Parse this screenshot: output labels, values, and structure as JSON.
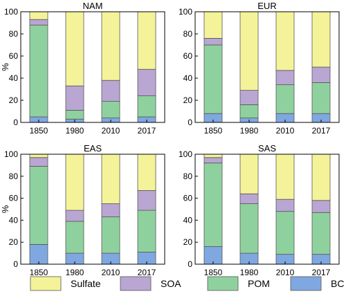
{
  "chart_data": [
    {
      "type": "bar",
      "stacked": true,
      "title": "NAM",
      "ylabel": "%",
      "ylim": [
        0,
        100
      ],
      "yticks": [
        0,
        20,
        40,
        60,
        80,
        100
      ],
      "categories": [
        "1850",
        "1980",
        "2010",
        "2017"
      ],
      "series": [
        {
          "name": "BC",
          "values": [
            5,
            3,
            4,
            5
          ]
        },
        {
          "name": "POM",
          "values": [
            83,
            8,
            15,
            19
          ]
        },
        {
          "name": "SOA",
          "values": [
            5,
            22,
            19,
            24
          ]
        },
        {
          "name": "Sulfate",
          "values": [
            7,
            67,
            62,
            52
          ]
        }
      ]
    },
    {
      "type": "bar",
      "stacked": true,
      "title": "EUR",
      "ylabel": "",
      "ylim": [
        0,
        100
      ],
      "yticks": [
        0,
        20,
        40,
        60,
        80,
        100
      ],
      "categories": [
        "1850",
        "1980",
        "2010",
        "2017"
      ],
      "series": [
        {
          "name": "BC",
          "values": [
            8,
            4,
            8,
            8
          ]
        },
        {
          "name": "POM",
          "values": [
            62,
            12,
            26,
            28
          ]
        },
        {
          "name": "SOA",
          "values": [
            6,
            13,
            13,
            14
          ]
        },
        {
          "name": "Sulfate",
          "values": [
            24,
            71,
            53,
            50
          ]
        }
      ]
    },
    {
      "type": "bar",
      "stacked": true,
      "title": "EAS",
      "ylabel": "%",
      "ylim": [
        0,
        100
      ],
      "yticks": [
        0,
        20,
        40,
        60,
        80,
        100
      ],
      "categories": [
        "1850",
        "1980",
        "2010",
        "2017"
      ],
      "series": [
        {
          "name": "BC",
          "values": [
            18,
            10,
            10,
            11
          ]
        },
        {
          "name": "POM",
          "values": [
            71,
            29,
            33,
            38
          ]
        },
        {
          "name": "SOA",
          "values": [
            8,
            10,
            12,
            18
          ]
        },
        {
          "name": "Sulfate",
          "values": [
            3,
            51,
            45,
            33
          ]
        }
      ]
    },
    {
      "type": "bar",
      "stacked": true,
      "title": "SAS",
      "ylabel": "",
      "ylim": [
        0,
        100
      ],
      "yticks": [
        0,
        20,
        40,
        60,
        80,
        100
      ],
      "categories": [
        "1850",
        "1980",
        "2010",
        "2017"
      ],
      "series": [
        {
          "name": "BC",
          "values": [
            16,
            10,
            9,
            9
          ]
        },
        {
          "name": "POM",
          "values": [
            76,
            45,
            39,
            38
          ]
        },
        {
          "name": "SOA",
          "values": [
            5,
            9,
            11,
            11
          ]
        },
        {
          "name": "Sulfate",
          "values": [
            3,
            36,
            41,
            42
          ]
        }
      ]
    }
  ],
  "legend": {
    "placement": "bottom",
    "items": [
      {
        "label": "Sulfate",
        "color": "#f5f39a"
      },
      {
        "label": "SOA",
        "color": "#b9a6d2"
      },
      {
        "label": "POM",
        "color": "#8fd19e"
      },
      {
        "label": "BC",
        "color": "#7fa8e0"
      }
    ]
  },
  "colors": {
    "BC": "#7fa8e0",
    "POM": "#8fd19e",
    "SOA": "#b9a6d2",
    "Sulfate": "#f5f39a"
  }
}
